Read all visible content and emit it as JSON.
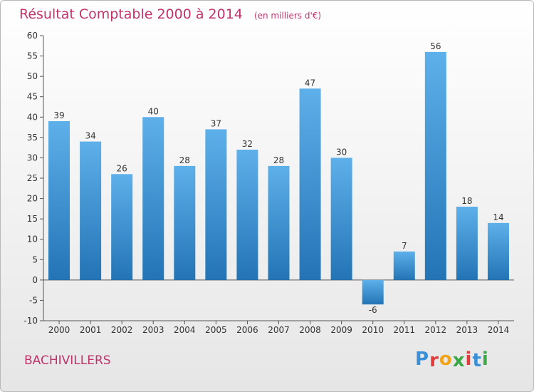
{
  "chart_data": {
    "type": "bar",
    "title": "Résultat Comptable 2000 à 2014",
    "subtitle": "(en milliers d'€)",
    "xlabel": "",
    "ylabel": "",
    "categories": [
      "2000",
      "2001",
      "2002",
      "2003",
      "2004",
      "2005",
      "2006",
      "2007",
      "2008",
      "2009",
      "2010",
      "2011",
      "2012",
      "2013",
      "2014"
    ],
    "values": [
      39,
      34,
      26,
      40,
      28,
      37,
      32,
      28,
      47,
      30,
      -6,
      7,
      56,
      18,
      14
    ],
    "ylim": [
      -10,
      60
    ],
    "yticks": [
      60,
      55,
      50,
      45,
      40,
      35,
      30,
      25,
      20,
      15,
      10,
      5,
      0,
      -5,
      -10
    ],
    "grid": false,
    "legend": "none"
  },
  "footer": {
    "commune": "BACHIVILLERS",
    "logo_letters": [
      "P",
      "r",
      "o",
      "x",
      "i",
      "t",
      "i"
    ]
  },
  "colors": {
    "title": "#c0336b",
    "bar_light": "#5eb0ea",
    "bar_dark": "#2274b5",
    "axis": "#555555",
    "logo": [
      "#3a8fd6",
      "#e03c3c",
      "#f2a51a",
      "#3aa845",
      "#e03c3c",
      "#3a8fd6",
      "#3aa845"
    ]
  }
}
